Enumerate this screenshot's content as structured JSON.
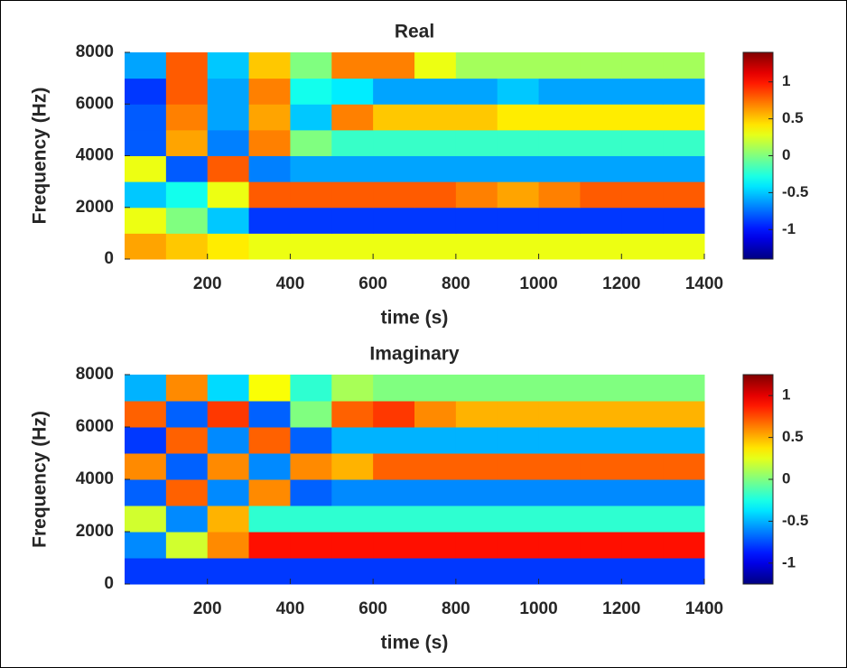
{
  "chart_data": [
    {
      "type": "heatmap",
      "title": "Real",
      "xlabel": "time (s)",
      "ylabel": "Frequency (Hz)",
      "colormap": "jet",
      "x": [
        50,
        150,
        250,
        350,
        450,
        550,
        650,
        750,
        850,
        950,
        1050,
        1150,
        1250,
        1350
      ],
      "y": [
        500,
        1500,
        2500,
        3500,
        4500,
        5500,
        6500,
        7500
      ],
      "z": [
        [
          0.6,
          0.5,
          0.4,
          0.3,
          0.3,
          0.3,
          0.3,
          0.3,
          0.3,
          0.3,
          0.3,
          0.3,
          0.3,
          0.3
        ],
        [
          0.3,
          0,
          -0.5,
          -0.9,
          -0.9,
          -0.9,
          -0.9,
          -0.9,
          -0.9,
          -0.9,
          -0.9,
          -0.9,
          -0.9,
          -0.9
        ],
        [
          -0.5,
          -0.3,
          0.3,
          0.8,
          0.8,
          0.8,
          0.8,
          0.8,
          0.7,
          0.6,
          0.7,
          0.8,
          0.8,
          0.8
        ],
        [
          0.3,
          -0.8,
          0.8,
          -0.7,
          -0.6,
          -0.6,
          -0.6,
          -0.6,
          -0.6,
          -0.6,
          -0.6,
          -0.6,
          -0.6,
          -0.6
        ],
        [
          -0.8,
          0.6,
          -0.7,
          0.7,
          0,
          -0.2,
          -0.2,
          -0.2,
          -0.2,
          -0.2,
          -0.2,
          -0.2,
          -0.2,
          -0.2
        ],
        [
          -0.8,
          0.7,
          -0.6,
          0.6,
          -0.5,
          0.7,
          0.5,
          0.5,
          0.5,
          0.4,
          0.4,
          0.4,
          0.4,
          0.4
        ],
        [
          -0.9,
          0.8,
          -0.6,
          0.7,
          -0.3,
          -0.4,
          -0.6,
          -0.6,
          -0.6,
          -0.5,
          -0.6,
          -0.6,
          -0.6,
          -0.6
        ],
        [
          -0.6,
          0.8,
          -0.5,
          0.5,
          0,
          0.7,
          0.7,
          0.3,
          0.1,
          0.1,
          0.1,
          0.1,
          0.1,
          0.1
        ]
      ],
      "xlim": [
        0,
        1400
      ],
      "xticks": [
        200,
        400,
        600,
        800,
        1000,
        1200,
        1400
      ],
      "ylim": [
        0,
        8000
      ],
      "yticks": [
        0,
        2000,
        4000,
        6000,
        8000
      ],
      "clim": [
        -1.4,
        1.4
      ],
      "cticks": [
        -1,
        -0.5,
        0,
        0.5,
        1
      ]
    },
    {
      "type": "heatmap",
      "title": "Imaginary",
      "xlabel": "time (s)",
      "ylabel": "Frequency (Hz)",
      "colormap": "jet",
      "x": [
        50,
        150,
        250,
        350,
        450,
        550,
        650,
        750,
        850,
        950,
        1050,
        1150,
        1250,
        1350
      ],
      "y": [
        500,
        1500,
        2500,
        3500,
        4500,
        5500,
        6500,
        7500
      ],
      "z": [
        [
          -0.8,
          -0.8,
          -0.8,
          -0.8,
          -0.8,
          -0.8,
          -0.8,
          -0.8,
          -0.8,
          -0.8,
          -0.8,
          -0.8,
          -0.8,
          -0.8
        ],
        [
          -0.6,
          0.2,
          0.6,
          0.9,
          0.9,
          0.9,
          0.9,
          0.9,
          0.9,
          0.9,
          0.9,
          0.9,
          0.9,
          0.9
        ],
        [
          0.2,
          -0.6,
          0.5,
          -0.2,
          -0.2,
          -0.2,
          -0.2,
          -0.2,
          -0.2,
          -0.2,
          -0.2,
          -0.2,
          -0.2,
          -0.2
        ],
        [
          -0.7,
          0.7,
          -0.6,
          0.6,
          -0.7,
          -0.6,
          -0.6,
          -0.6,
          -0.6,
          -0.6,
          -0.6,
          -0.6,
          -0.6,
          -0.6
        ],
        [
          0.6,
          -0.7,
          0.6,
          -0.6,
          0.6,
          0.5,
          0.7,
          0.7,
          0.7,
          0.7,
          0.7,
          0.7,
          0.7,
          0.7
        ],
        [
          -0.8,
          0.7,
          -0.6,
          0.7,
          -0.7,
          -0.5,
          -0.5,
          -0.5,
          -0.5,
          -0.5,
          -0.5,
          -0.5,
          -0.5,
          -0.5
        ],
        [
          0.7,
          -0.7,
          0.8,
          -0.7,
          0,
          0.7,
          0.8,
          0.6,
          0.5,
          0.5,
          0.5,
          0.5,
          0.5,
          0.5
        ],
        [
          -0.5,
          0.6,
          -0.4,
          0.3,
          -0.2,
          0.1,
          0,
          0,
          0,
          0,
          0,
          0,
          0,
          0
        ]
      ],
      "xlim": [
        0,
        1400
      ],
      "xticks": [
        200,
        400,
        600,
        800,
        1000,
        1200,
        1400
      ],
      "ylim": [
        0,
        8000
      ],
      "yticks": [
        0,
        2000,
        4000,
        6000,
        8000
      ],
      "clim": [
        -1.25,
        1.25
      ],
      "cticks": [
        -1,
        -0.5,
        0,
        0.5,
        1
      ]
    }
  ]
}
